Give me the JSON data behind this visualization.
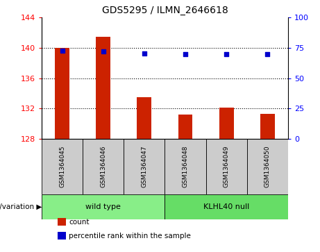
{
  "title": "GDS5295 / ILMN_2646618",
  "samples": [
    "GSM1364045",
    "GSM1364046",
    "GSM1364047",
    "GSM1364048",
    "GSM1364049",
    "GSM1364050"
  ],
  "bar_values": [
    140.0,
    141.5,
    133.5,
    131.2,
    132.1,
    131.3
  ],
  "percentile_values": [
    139.65,
    139.55,
    139.3,
    139.2,
    139.2,
    139.2
  ],
  "bar_base": 128,
  "ylim": [
    128,
    144
  ],
  "yticks_left": [
    128,
    132,
    136,
    140,
    144
  ],
  "yticks_right": [
    0,
    25,
    50,
    75,
    100
  ],
  "bar_color": "#cc2200",
  "dot_color": "#0000cc",
  "groups": [
    {
      "label": "wild type",
      "samples_idx": [
        0,
        1,
        2
      ],
      "color": "#88ee88"
    },
    {
      "label": "KLHL40 null",
      "samples_idx": [
        3,
        4,
        5
      ],
      "color": "#66dd66"
    }
  ],
  "group_label": "genotype/variation",
  "legend_items": [
    {
      "color": "#cc2200",
      "label": "count"
    },
    {
      "color": "#0000cc",
      "label": "percentile rank within the sample"
    }
  ],
  "bar_width": 0.35,
  "figsize": [
    4.61,
    3.63
  ],
  "dpi": 100
}
